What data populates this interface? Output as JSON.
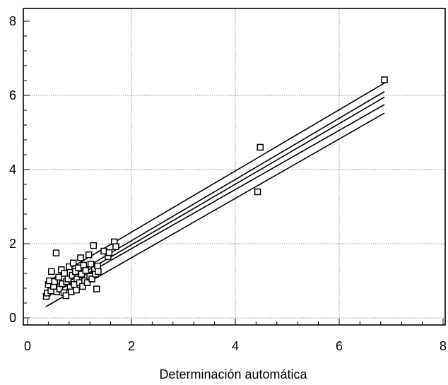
{
  "chart_data": {
    "type": "scatter",
    "title": "",
    "xlabel": "Determinación automática",
    "ylabel": "",
    "xlim": [
      0,
      8
    ],
    "ylim": [
      -0.1,
      8.3
    ],
    "grid": true,
    "legend": "none",
    "x_ticks": [
      "0",
      "2",
      "4",
      "6",
      "8"
    ],
    "y_ticks": [
      "0",
      "2",
      "4",
      "6",
      "8"
    ],
    "marker": "open-square",
    "colors": {
      "points": "#000000",
      "lines": "#000000",
      "grid": "#9a9a9a",
      "frame": "#000000"
    },
    "points": [
      {
        "x": 0.36,
        "y": 0.58
      },
      {
        "x": 0.38,
        "y": 0.67
      },
      {
        "x": 0.4,
        "y": 0.9
      },
      {
        "x": 0.42,
        "y": 1.0
      },
      {
        "x": 0.45,
        "y": 0.73
      },
      {
        "x": 0.46,
        "y": 1.25
      },
      {
        "x": 0.5,
        "y": 0.85
      },
      {
        "x": 0.52,
        "y": 0.98
      },
      {
        "x": 0.55,
        "y": 1.75
      },
      {
        "x": 0.56,
        "y": 0.7
      },
      {
        "x": 0.6,
        "y": 1.1
      },
      {
        "x": 0.62,
        "y": 0.78
      },
      {
        "x": 0.65,
        "y": 1.3
      },
      {
        "x": 0.67,
        "y": 0.92
      },
      {
        "x": 0.7,
        "y": 0.68
      },
      {
        "x": 0.71,
        "y": 1.2
      },
      {
        "x": 0.74,
        "y": 0.6
      },
      {
        "x": 0.75,
        "y": 0.98
      },
      {
        "x": 0.78,
        "y": 1.05
      },
      {
        "x": 0.8,
        "y": 1.38
      },
      {
        "x": 0.82,
        "y": 0.82
      },
      {
        "x": 0.84,
        "y": 0.7
      },
      {
        "x": 0.86,
        "y": 1.15
      },
      {
        "x": 0.88,
        "y": 1.48
      },
      {
        "x": 0.9,
        "y": 0.9
      },
      {
        "x": 0.92,
        "y": 1.25
      },
      {
        "x": 0.94,
        "y": 0.75
      },
      {
        "x": 0.95,
        "y": 1.05
      },
      {
        "x": 0.98,
        "y": 1.35
      },
      {
        "x": 1.0,
        "y": 0.95
      },
      {
        "x": 1.02,
        "y": 1.62
      },
      {
        "x": 1.04,
        "y": 1.18
      },
      {
        "x": 1.06,
        "y": 0.85
      },
      {
        "x": 1.08,
        "y": 1.42
      },
      {
        "x": 1.1,
        "y": 1.0
      },
      {
        "x": 1.12,
        "y": 1.28
      },
      {
        "x": 1.15,
        "y": 0.95
      },
      {
        "x": 1.18,
        "y": 1.7
      },
      {
        "x": 1.2,
        "y": 1.12
      },
      {
        "x": 1.22,
        "y": 1.45
      },
      {
        "x": 1.24,
        "y": 1.05
      },
      {
        "x": 1.27,
        "y": 1.95
      },
      {
        "x": 1.29,
        "y": 1.3
      },
      {
        "x": 1.31,
        "y": 1.18
      },
      {
        "x": 1.33,
        "y": 0.78
      },
      {
        "x": 1.35,
        "y": 1.4
      },
      {
        "x": 1.36,
        "y": 1.25
      },
      {
        "x": 1.47,
        "y": 1.8
      },
      {
        "x": 1.55,
        "y": 1.65
      },
      {
        "x": 1.57,
        "y": 1.76
      },
      {
        "x": 1.67,
        "y": 2.05
      },
      {
        "x": 1.7,
        "y": 1.92
      },
      {
        "x": 4.43,
        "y": 3.4
      },
      {
        "x": 4.48,
        "y": 4.6
      },
      {
        "x": 6.87,
        "y": 6.42
      }
    ],
    "lines": [
      {
        "x": [
          0.35,
          6.87
        ],
        "y": [
          0.95,
          6.33
        ]
      },
      {
        "x": [
          0.35,
          6.87
        ],
        "y": [
          0.72,
          6.1
        ]
      },
      {
        "x": [
          0.35,
          6.87
        ],
        "y": [
          0.62,
          5.95
        ]
      },
      {
        "x": [
          0.35,
          6.87
        ],
        "y": [
          0.55,
          5.75
        ]
      },
      {
        "x": [
          0.35,
          6.87
        ],
        "y": [
          0.3,
          5.52
        ]
      }
    ]
  }
}
